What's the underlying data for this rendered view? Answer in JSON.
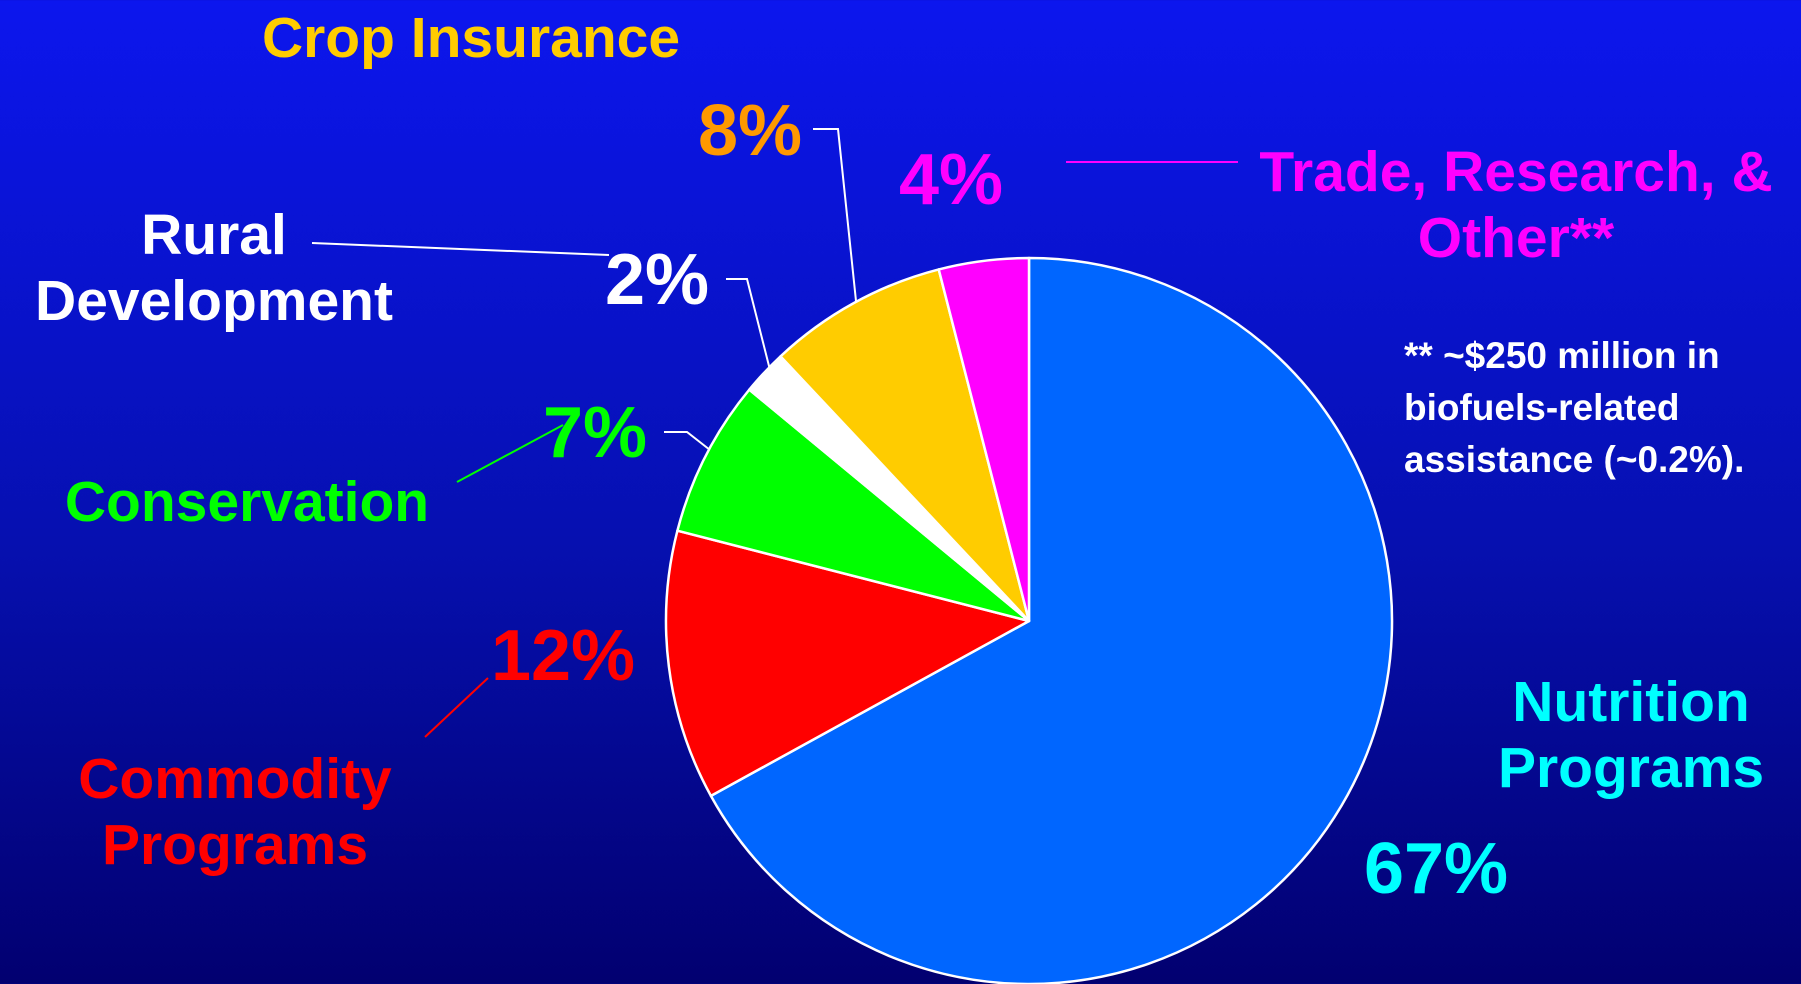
{
  "chart_data": {
    "type": "pie",
    "categories": [
      "Nutrition Programs",
      "Commodity Programs",
      "Conservation",
      "Rural Development",
      "Crop Insurance",
      "Trade, Research, & Other**"
    ],
    "values": [
      67,
      12,
      7,
      2,
      8,
      4
    ],
    "value_labels": [
      "67%",
      "12%",
      "7%",
      "2%",
      "8%",
      "4%"
    ],
    "colors": [
      "#0066ff",
      "#ff0000",
      "#00ff00",
      "#ffffff",
      "#ffcc00",
      "#ff00ff"
    ],
    "label_colors": [
      "#00ffff",
      "#ff0000",
      "#00ff00",
      "#ffffff",
      "#ffcc00",
      "#ff00ff"
    ],
    "value_label_colors": [
      "#00ffff",
      "#ff0000",
      "#00ff00",
      "#ffffff",
      "#ff9900",
      "#ff00ff"
    ],
    "note": "** ~$250 million in biofuels-related assistance (~0.2%)."
  }
}
